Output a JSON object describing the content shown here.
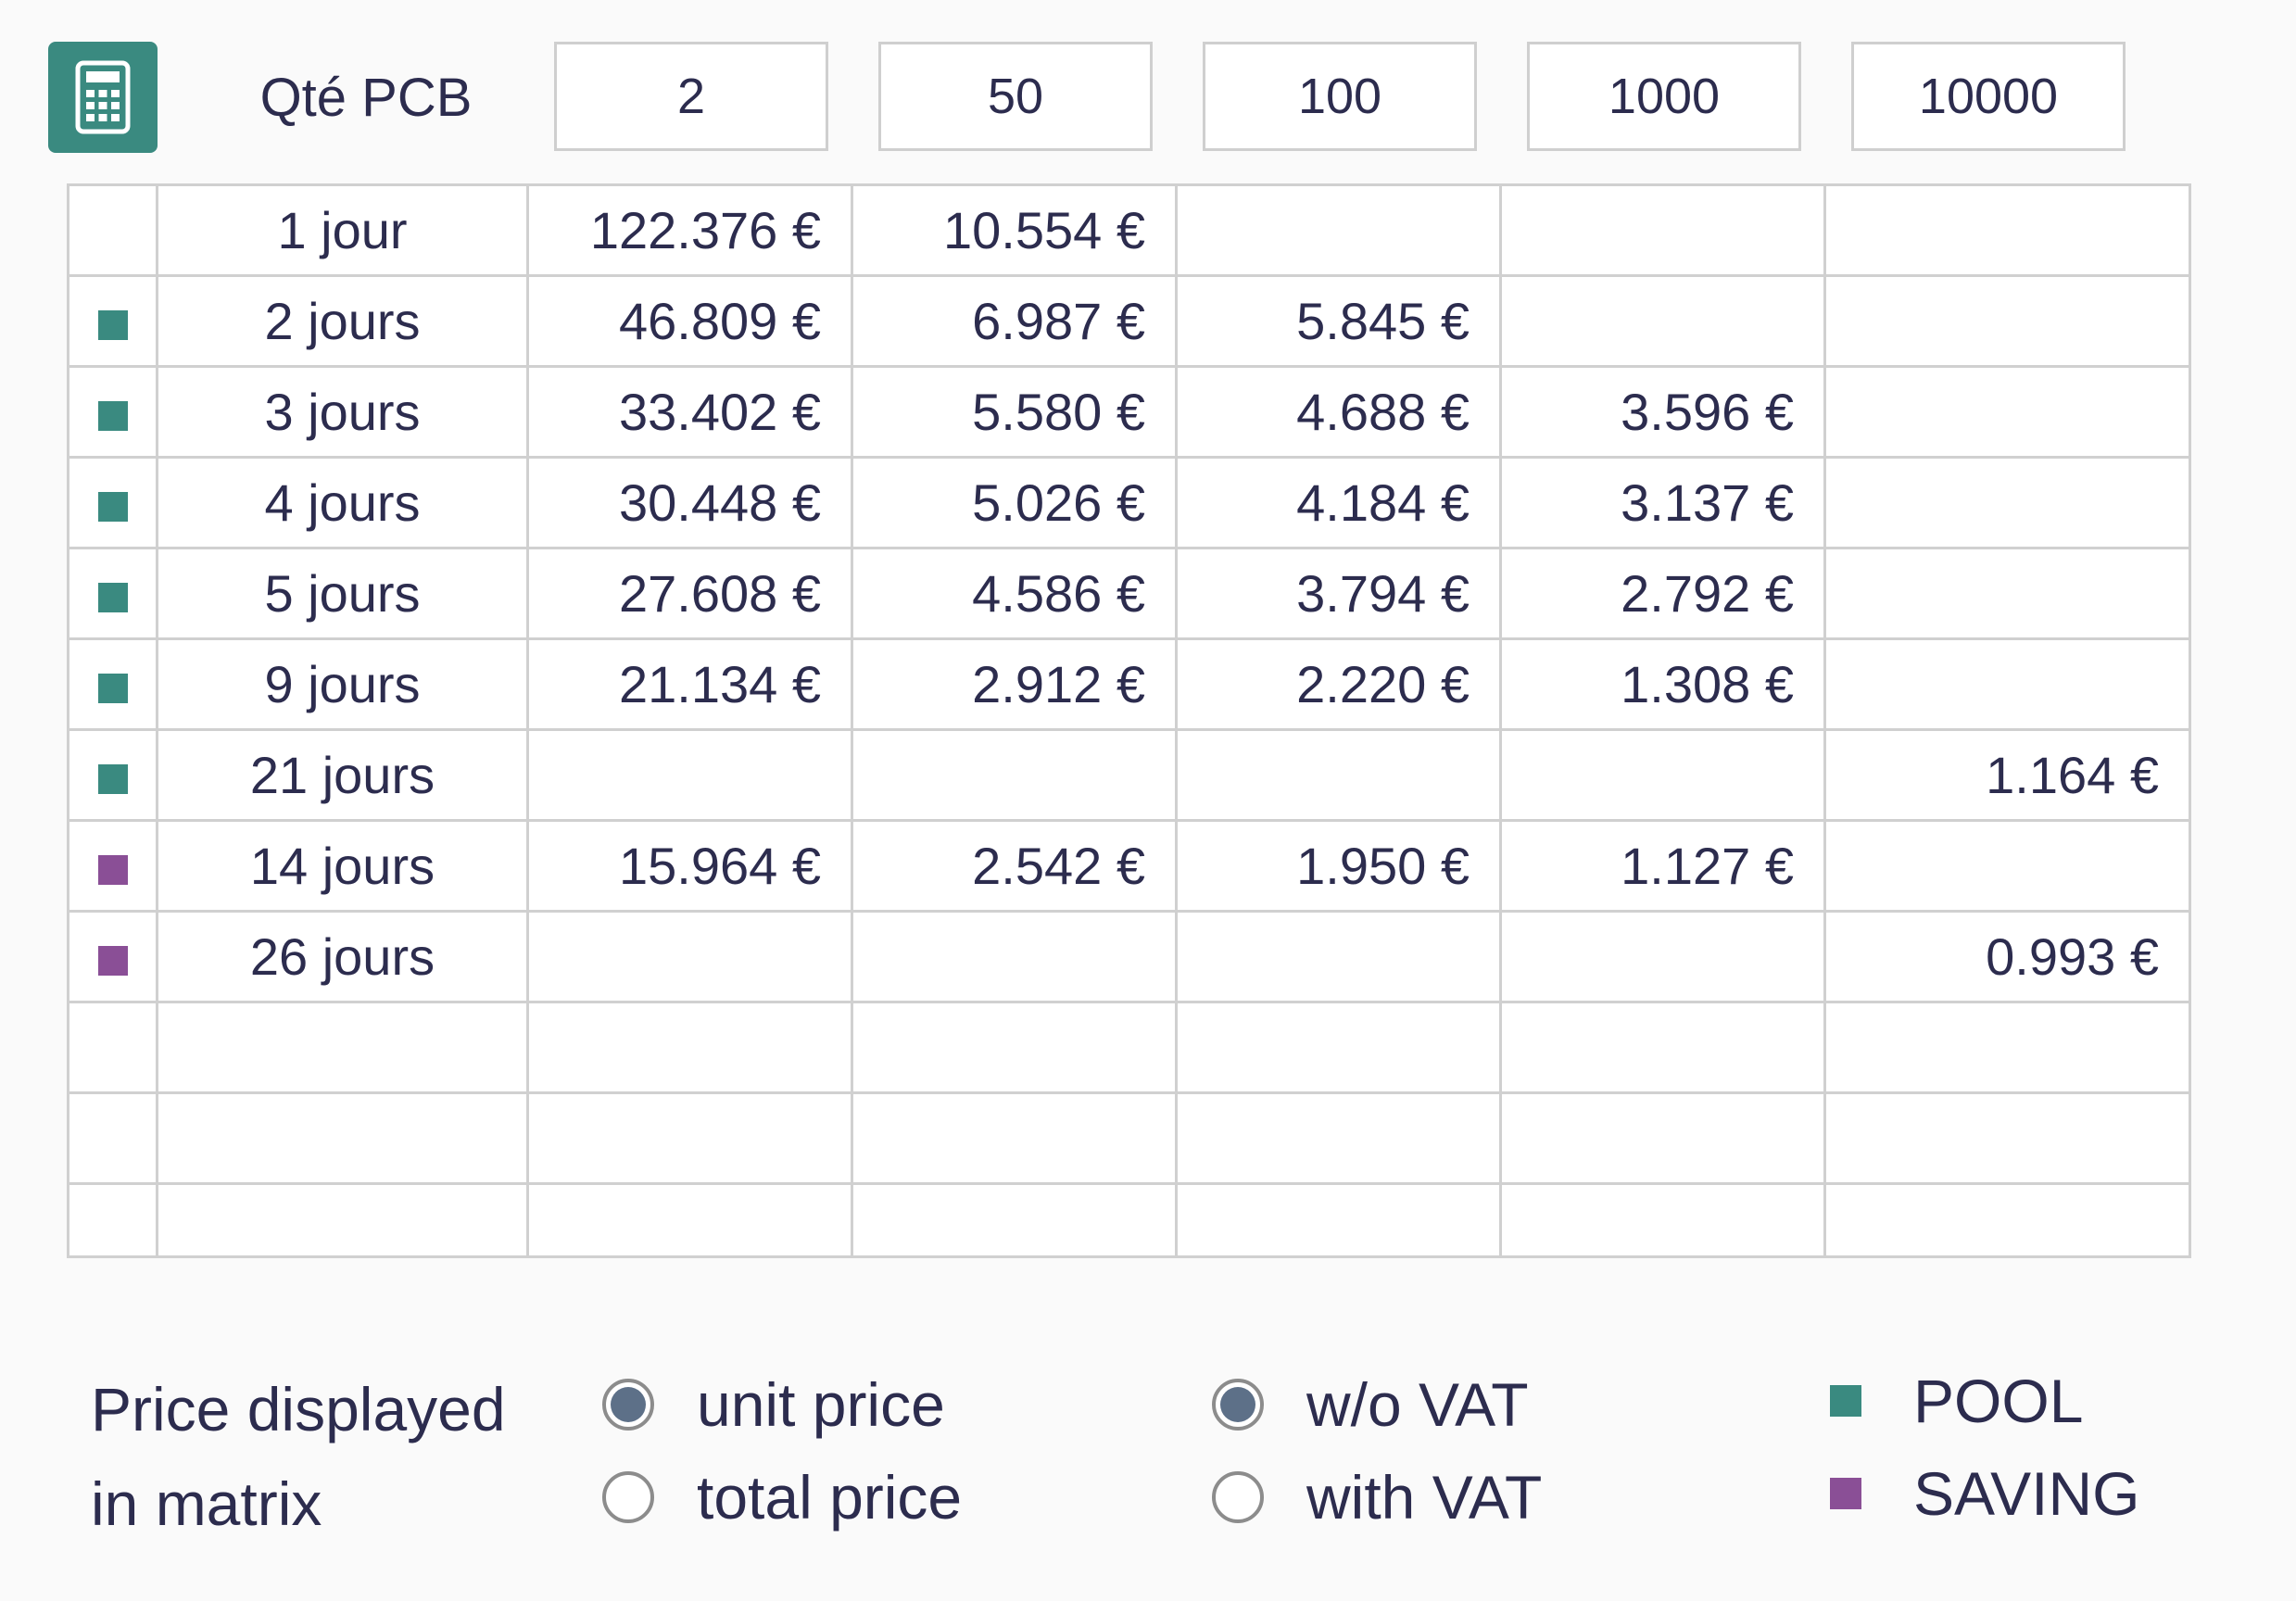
{
  "header": {
    "calculator_icon": "calculator-icon",
    "qty_label": "Qté PCB",
    "quantities": [
      "2",
      "50",
      "100",
      "1000",
      "10000"
    ]
  },
  "colors": {
    "pool": "#3a8a80",
    "saving": "#8a4f96",
    "radio_selected": "#5d7088"
  },
  "matrix": {
    "rows": [
      {
        "marker": "none",
        "days": "1 jour",
        "prices": [
          "122.376 €",
          "10.554 €",
          "",
          "",
          ""
        ]
      },
      {
        "marker": "pool",
        "days": "2 jours",
        "prices": [
          "46.809 €",
          "6.987 €",
          "5.845 €",
          "",
          ""
        ]
      },
      {
        "marker": "pool",
        "days": "3 jours",
        "prices": [
          "33.402 €",
          "5.580 €",
          "4.688 €",
          "3.596 €",
          ""
        ]
      },
      {
        "marker": "pool",
        "days": "4 jours",
        "prices": [
          "30.448 €",
          "5.026 €",
          "4.184 €",
          "3.137 €",
          ""
        ]
      },
      {
        "marker": "pool",
        "days": "5 jours",
        "prices": [
          "27.608 €",
          "4.586 €",
          "3.794 €",
          "2.792 €",
          ""
        ]
      },
      {
        "marker": "pool",
        "days": "9 jours",
        "prices": [
          "21.134 €",
          "2.912 €",
          "2.220 €",
          "1.308 €",
          ""
        ]
      },
      {
        "marker": "pool",
        "days": "21 jours",
        "prices": [
          "",
          "",
          "",
          "",
          "1.164 €"
        ]
      },
      {
        "marker": "saving",
        "days": "14 jours",
        "prices": [
          "15.964 €",
          "2.542 €",
          "1.950 €",
          "1.127 €",
          ""
        ]
      },
      {
        "marker": "saving",
        "days": "26 jours",
        "prices": [
          "",
          "",
          "",
          "",
          "0.993 €"
        ]
      },
      {
        "marker": "none",
        "days": "",
        "prices": [
          "",
          "",
          "",
          "",
          ""
        ]
      },
      {
        "marker": "none",
        "days": "",
        "prices": [
          "",
          "",
          "",
          "",
          ""
        ]
      },
      {
        "marker": "none",
        "days": "",
        "prices": [
          "",
          "",
          "",
          "",
          ""
        ]
      }
    ]
  },
  "footer": {
    "price_label_line1": "Price displayed",
    "price_label_line2": "in matrix",
    "price_mode": [
      {
        "label": "unit price",
        "selected": true
      },
      {
        "label": "total price",
        "selected": false
      }
    ],
    "vat_mode": [
      {
        "label": "w/o VAT",
        "selected": true
      },
      {
        "label": "with VAT",
        "selected": false
      }
    ],
    "legend": [
      {
        "label": "POOL",
        "color": "#3a8a80"
      },
      {
        "label": "SAVING",
        "color": "#8a4f96"
      }
    ]
  }
}
